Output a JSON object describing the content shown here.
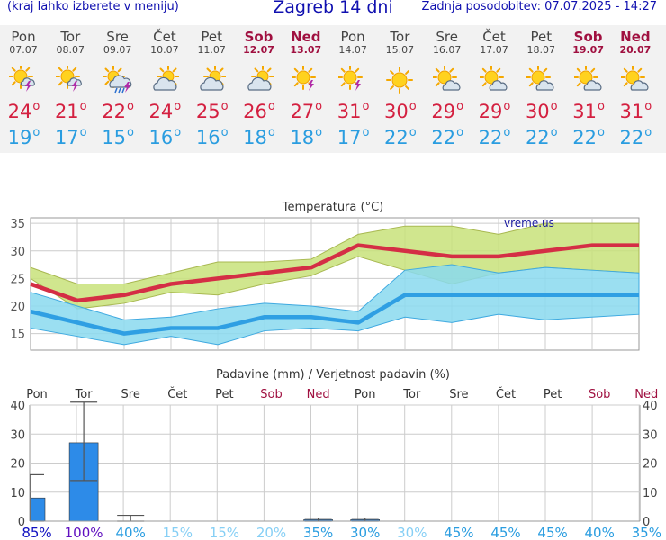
{
  "header": {
    "left_note": "(kraj lahko izberete v meniju)",
    "title": "Zagreb 14 dni",
    "updated": "Zadnja posodobitev: 07.07.2025 - 14:27"
  },
  "days": [
    {
      "name": "Pon",
      "date": "07.07",
      "weekend": false,
      "icon": "sun-cloud-storm-icon",
      "max": "24",
      "min": "19"
    },
    {
      "name": "Tor",
      "date": "08.07",
      "weekend": false,
      "icon": "sun-cloud-storm-icon",
      "max": "21",
      "min": "17"
    },
    {
      "name": "Sre",
      "date": "09.07",
      "weekend": false,
      "icon": "sun-cloud-storm-rain-icon",
      "max": "22",
      "min": "15"
    },
    {
      "name": "Čet",
      "date": "10.07",
      "weekend": false,
      "icon": "sun-cloud-icon",
      "max": "24",
      "min": "16"
    },
    {
      "name": "Pet",
      "date": "11.07",
      "weekend": false,
      "icon": "sun-cloud-icon",
      "max": "25",
      "min": "16"
    },
    {
      "name": "Sob",
      "date": "12.07",
      "weekend": true,
      "icon": "sun-cloud-icon",
      "max": "26",
      "min": "18"
    },
    {
      "name": "Ned",
      "date": "13.07",
      "weekend": true,
      "icon": "sun-storm-icon",
      "max": "27",
      "min": "18"
    },
    {
      "name": "Pon",
      "date": "14.07",
      "weekend": false,
      "icon": "sun-storm-icon",
      "max": "31",
      "min": "17"
    },
    {
      "name": "Tor",
      "date": "15.07",
      "weekend": false,
      "icon": "sun-icon",
      "max": "30",
      "min": "22"
    },
    {
      "name": "Sre",
      "date": "16.07",
      "weekend": false,
      "icon": "sun-small-cloud-icon",
      "max": "29",
      "min": "22"
    },
    {
      "name": "Čet",
      "date": "17.07",
      "weekend": false,
      "icon": "sun-small-cloud-icon",
      "max": "29",
      "min": "22"
    },
    {
      "name": "Pet",
      "date": "18.07",
      "weekend": false,
      "icon": "sun-small-cloud-icon",
      "max": "30",
      "min": "22"
    },
    {
      "name": "Sob",
      "date": "19.07",
      "weekend": true,
      "icon": "sun-small-cloud-icon",
      "max": "31",
      "min": "22"
    },
    {
      "name": "Ned",
      "date": "20.07",
      "weekend": true,
      "icon": "sun-small-cloud-icon",
      "max": "31",
      "min": "22"
    }
  ],
  "deg_symbol": "o",
  "chart_data": [
    {
      "type": "line",
      "title": "Temperatura (°C)",
      "watermark": "vreme.us",
      "categories": [
        "07.07",
        "08.07",
        "09.07",
        "10.07",
        "11.07",
        "12.07",
        "13.07",
        "14.07",
        "15.07",
        "16.07",
        "17.07",
        "18.07",
        "19.07",
        "20.07"
      ],
      "ylim": [
        12,
        36
      ],
      "yticks": [
        15,
        20,
        25,
        30,
        35
      ],
      "grid": true,
      "series": [
        {
          "role": "max",
          "color": "#d42e45",
          "values": [
            24,
            21,
            22,
            24,
            25,
            26,
            27,
            31,
            30,
            29,
            29,
            30,
            31,
            31
          ]
        },
        {
          "role": "min",
          "color": "#2f9fe3",
          "values": [
            19,
            17,
            15,
            16,
            16,
            18,
            18,
            17,
            22,
            22,
            22,
            22,
            22,
            22
          ]
        }
      ],
      "bands": [
        {
          "role": "max-range",
          "color": "#c8e27a",
          "low": [
            25,
            19.5,
            20.5,
            22.5,
            22,
            24,
            25.5,
            29,
            26.5,
            24,
            26,
            27,
            26.5,
            26
          ],
          "high": [
            27,
            24,
            24,
            26,
            28,
            28,
            28.5,
            33,
            34.5,
            34.5,
            33,
            35,
            35,
            35
          ]
        },
        {
          "role": "min-range",
          "color": "#8ad9ef",
          "low": [
            16,
            14.5,
            13,
            14.5,
            13,
            15.5,
            16,
            15.5,
            18,
            17,
            18.5,
            17.5,
            18,
            18.5
          ],
          "high": [
            22.5,
            20,
            17.5,
            18,
            19.5,
            20.5,
            20,
            19,
            26.5,
            27.5,
            26,
            27,
            26.5,
            26
          ]
        }
      ]
    },
    {
      "type": "bar",
      "title": "Padavine (mm) / Verjetnost padavin (%)",
      "day_names": [
        "Pon",
        "Tor",
        "Sre",
        "Čet",
        "Pet",
        "Sob",
        "Ned",
        "Pon",
        "Tor",
        "Sre",
        "Čet",
        "Pet",
        "Sob",
        "Ned"
      ],
      "weekend": [
        false,
        false,
        false,
        false,
        false,
        true,
        true,
        false,
        false,
        false,
        false,
        false,
        true,
        true
      ],
      "ylim": [
        0,
        40
      ],
      "yticks": [
        0,
        10,
        20,
        30,
        40
      ],
      "bar_color": "#2d8be8",
      "values": [
        8,
        27,
        0,
        0,
        0,
        0,
        0.5,
        0.5,
        0,
        0,
        0,
        0,
        0,
        0
      ],
      "ranges": [
        [
          0,
          16
        ],
        [
          14,
          41
        ],
        [
          0,
          2
        ],
        null,
        null,
        null,
        [
          0,
          1
        ],
        [
          0,
          1
        ],
        null,
        null,
        null,
        null,
        null,
        null
      ],
      "probabilities": [
        "85%",
        "100%",
        "40%",
        "15%",
        "15%",
        "20%",
        "35%",
        "30%",
        "30%",
        "45%",
        "45%",
        "45%",
        "40%",
        "35%"
      ],
      "prob_colors": [
        "#1010c0",
        "#6010c0",
        "#2a9de0",
        "#86cff5",
        "#86cff5",
        "#86cff5",
        "#2a9de0",
        "#2a9de0",
        "#86cff5",
        "#2a9de0",
        "#2a9de0",
        "#2a9de0",
        "#2a9de0",
        "#2a9de0"
      ]
    }
  ]
}
